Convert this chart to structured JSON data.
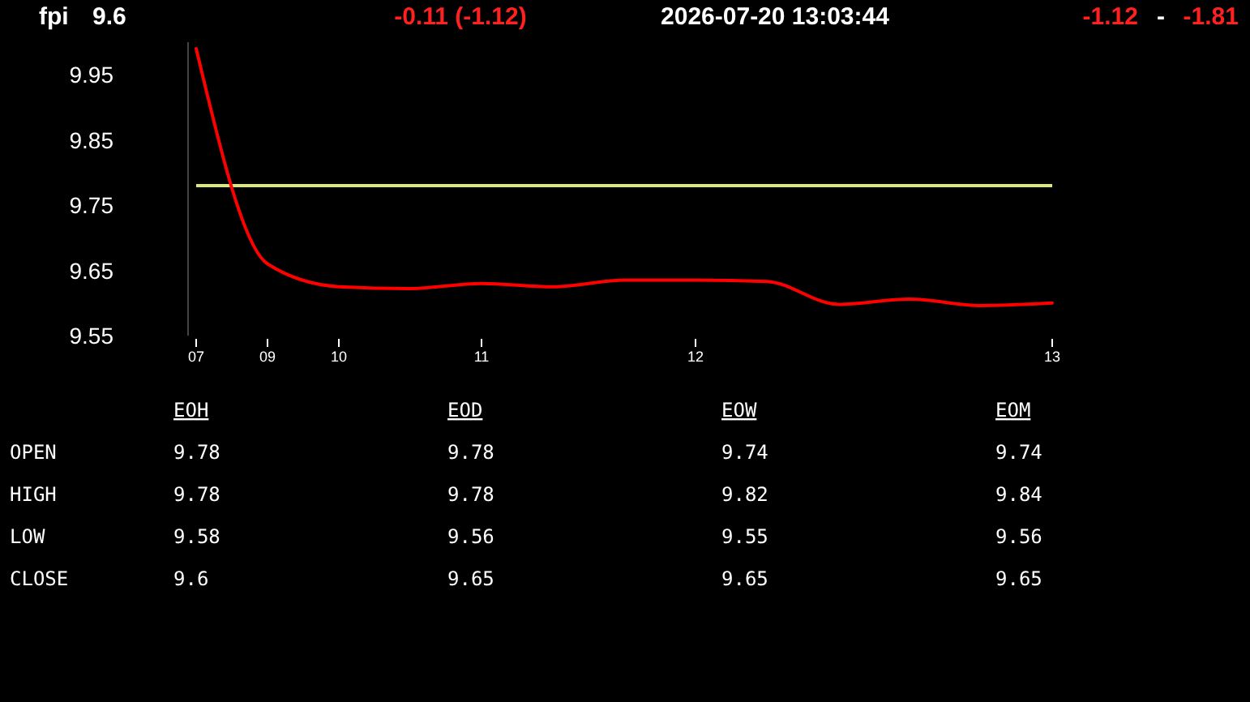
{
  "chart_data": [
    {
      "type": "line",
      "title": "fpi",
      "annotations": [
        "9.6",
        "-0.11  (-1.12)",
        "2026-07-20  13:03:44",
        "-1.12",
        "-",
        "-1.81"
      ],
      "categories": [
        "07",
        "09",
        "10",
        null,
        "11",
        null,
        null,
        "12",
        null,
        null,
        null,
        null,
        "13"
      ],
      "series": [
        {
          "color": "#ff0000",
          "values": [
            9.99,
            9.66,
            9.625,
            9.622,
            9.63,
            9.625,
            9.635,
            9.635,
            9.633,
            9.598,
            9.606,
            9.596,
            9.6
          ]
        }
      ],
      "ylim": [
        9.55,
        10.0
      ],
      "yticks": [
        9.55,
        9.65,
        9.75,
        9.85,
        9.95
      ],
      "ref_lines": [
        {
          "axis": "y",
          "value": 9.78,
          "color": "#dce775"
        }
      ],
      "grid": false,
      "marker": "none",
      "line_style": "solid"
    },
    {
      "type": "other",
      "categories": [
        "EOH",
        "EOD",
        "EOW",
        "EOM"
      ],
      "y_categories": [
        "OPEN",
        "HIGH",
        "LOW",
        "CLOSE"
      ],
      "cell_labels": [
        [
          "9.78",
          "9.78",
          "9.74",
          "9.74"
        ],
        [
          "9.78",
          "9.78",
          "9.82",
          "9.84"
        ],
        [
          "9.58",
          "9.56",
          "9.55",
          "9.56"
        ],
        [
          "9.6",
          "9.65",
          "9.65",
          "9.65"
        ]
      ]
    }
  ]
}
